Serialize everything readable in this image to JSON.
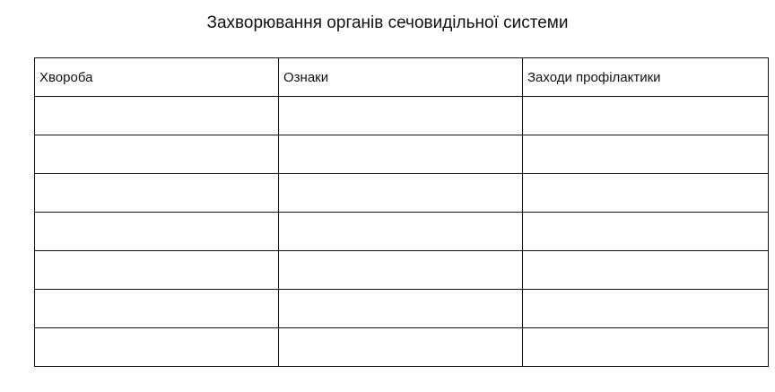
{
  "title": "Захворювання органів сечовидільної системи",
  "table": {
    "headers": [
      "Хвороба",
      "Ознаки",
      "Заходи профілактики"
    ],
    "rows": [
      [
        "",
        "",
        ""
      ],
      [
        "",
        "",
        ""
      ],
      [
        "",
        "",
        ""
      ],
      [
        "",
        "",
        ""
      ],
      [
        "",
        "",
        ""
      ],
      [
        "",
        "",
        ""
      ],
      [
        "",
        "",
        ""
      ]
    ]
  }
}
